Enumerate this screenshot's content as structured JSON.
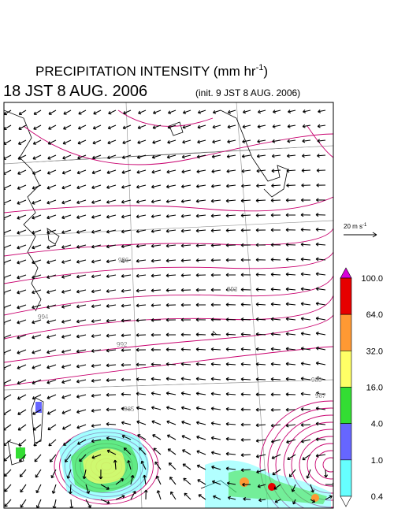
{
  "header": {
    "title": "PRECIPITATION INTENSITY (mm hr",
    "title_exponent": "-1",
    "title_close": ")",
    "valid_time": "18 JST 8 AUG. 2006",
    "init_time": "(init. 9 JST 8 AUG. 2006)"
  },
  "wind_scale": {
    "label": "20 m s",
    "exponent": "-1"
  },
  "colorbar": {
    "labels": [
      "100.0",
      "64.0",
      "32.0",
      "16.0",
      "4.0",
      "1.0",
      "0.4"
    ],
    "colors": [
      "#d800d8",
      "#e60000",
      "#ff9933",
      "#ffff66",
      "#33dd33",
      "#6666ff",
      "#66ffff",
      "#ffffff"
    ]
  },
  "isobar_labels": [
    "996",
    "993",
    "994",
    "992",
    "989",
    "987",
    "985"
  ]
}
